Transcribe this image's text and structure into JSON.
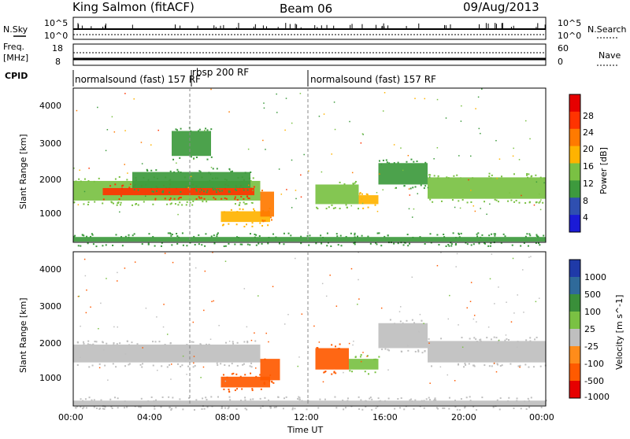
{
  "header": {
    "station": "King Salmon (fitACF)",
    "beam": "Beam 06",
    "date": "09/Aug/2013"
  },
  "top_panels": {
    "nsky_label": "N.Sky",
    "nsky_ticks": [
      "10^5",
      "10^0"
    ],
    "nsearch_label": "N.Search",
    "nsearch_ticks": [
      "10^5",
      "10^0"
    ],
    "freq_label_1": "Freq.",
    "freq_label_2": "[MHz]",
    "freq_ticks": [
      "18",
      "8"
    ],
    "nave_label": "Nave",
    "nave_ticks": [
      "60",
      "0"
    ],
    "cpid_label": "CPID",
    "cpid_segments": [
      {
        "name": "normalsound (fast) 157 RF",
        "start_h": 0,
        "end_h": 6
      },
      {
        "name": "rbsp 200 RF",
        "start_h": 6,
        "end_h": 12
      },
      {
        "name": "normalsound (fast) 157 RF",
        "start_h": 12,
        "end_h": 24
      }
    ]
  },
  "power_colorbar": {
    "title": "Power [dB]",
    "ticks": [
      "28",
      "24",
      "20",
      "16",
      "12",
      "8",
      "4"
    ],
    "colors": [
      "#e60000",
      "#ff3300",
      "#ff7a00",
      "#ffb300",
      "#7ac143",
      "#3d9a3d",
      "#2f4fb0",
      "#1a1ad6"
    ]
  },
  "velocity_colorbar": {
    "title": "Velocity [m s^-1]",
    "ticks": [
      "1000",
      "500",
      "100",
      "25",
      "-25",
      "-100",
      "-500",
      "-1000"
    ],
    "colors": [
      "#1f3aa8",
      "#2f6a9a",
      "#3a8f3a",
      "#7ac143",
      "#bfbfbf",
      "#ff8c1a",
      "#ff5a00",
      "#e60000"
    ]
  },
  "axes": {
    "ylabel": "Slant Range [km]",
    "yticks": [
      "4000",
      "3000",
      "2000",
      "1000"
    ],
    "xticks": [
      "00:00",
      "04:00",
      "08:00",
      "12:00",
      "16:00",
      "20:00",
      "00:00"
    ],
    "xlabel": "Time UT"
  },
  "chart_data": [
    {
      "type": "heatmap",
      "title": "",
      "xlabel": "Time UT",
      "ylabel": "Slant Range [km]",
      "x_range_h": [
        0,
        24
      ],
      "ylim": [
        180,
        4500
      ],
      "value_label": "Power [dB]",
      "clim": [
        0,
        30
      ],
      "regions": [
        {
          "t0": 0.0,
          "t1": 9.5,
          "r0": 1350,
          "r1": 1900,
          "value": 14
        },
        {
          "t0": 1.5,
          "t1": 9.2,
          "r0": 1500,
          "r1": 1700,
          "value": 26
        },
        {
          "t0": 3.0,
          "t1": 9.0,
          "r0": 1700,
          "r1": 2150,
          "value": 9
        },
        {
          "t0": 7.5,
          "t1": 10.0,
          "r0": 750,
          "r1": 1050,
          "value": 18
        },
        {
          "t0": 9.5,
          "t1": 10.2,
          "r0": 900,
          "r1": 1600,
          "value": 22
        },
        {
          "t0": 5.0,
          "t1": 7.0,
          "r0": 2600,
          "r1": 3300,
          "value": 8
        },
        {
          "t0": 12.3,
          "t1": 14.5,
          "r0": 1250,
          "r1": 1800,
          "value": 14
        },
        {
          "t0": 14.5,
          "t1": 15.5,
          "r0": 1250,
          "r1": 1500,
          "value": 16
        },
        {
          "t0": 15.5,
          "t1": 18.0,
          "r0": 1800,
          "r1": 2400,
          "value": 10
        },
        {
          "t0": 18.0,
          "t1": 24.0,
          "r0": 1400,
          "r1": 2000,
          "value": 14
        },
        {
          "t0": 0.0,
          "t1": 24.0,
          "r0": 200,
          "r1": 330,
          "value": 8
        }
      ]
    },
    {
      "type": "heatmap",
      "title": "",
      "xlabel": "Time UT",
      "ylabel": "Slant Range [km]",
      "x_range_h": [
        0,
        24
      ],
      "ylim": [
        180,
        4500
      ],
      "value_label": "Velocity [m s^-1]",
      "clim": [
        -1000,
        1000
      ],
      "regions": [
        {
          "t0": 0.0,
          "t1": 9.5,
          "r0": 1400,
          "r1": 1900,
          "value": 0
        },
        {
          "t0": 7.5,
          "t1": 10.0,
          "r0": 700,
          "r1": 1000,
          "value": -120
        },
        {
          "t0": 9.5,
          "t1": 10.5,
          "r0": 900,
          "r1": 1500,
          "value": -400
        },
        {
          "t0": 12.3,
          "t1": 14.0,
          "r0": 1200,
          "r1": 1800,
          "value": -400
        },
        {
          "t0": 14.0,
          "t1": 15.5,
          "r0": 1200,
          "r1": 1500,
          "value": 60
        },
        {
          "t0": 15.5,
          "t1": 18.0,
          "r0": 1800,
          "r1": 2500,
          "value": 0
        },
        {
          "t0": 18.0,
          "t1": 24.0,
          "r0": 1400,
          "r1": 2000,
          "value": 0
        },
        {
          "t0": 0.0,
          "t1": 24.0,
          "r0": 200,
          "r1": 330,
          "value": 0
        }
      ]
    }
  ]
}
